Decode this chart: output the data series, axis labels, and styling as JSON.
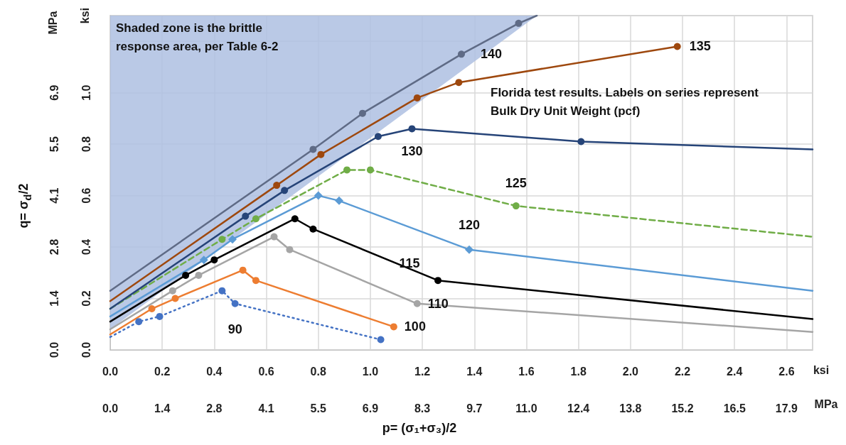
{
  "chart_data": {
    "type": "line",
    "xlabel": "ksi",
    "ylabel": "ksi",
    "x2label": "MPa",
    "y2label": "MPa",
    "annotations": [
      "p= (σ₁+σ₃)/2",
      "q= σ$_{d}$/2",
      "Shaded zone is the brittle response area, per Table 6-2",
      "Florida test results. Labels on series represent Bulk Dry Unit Weight (pcf)"
    ],
    "xlim": [
      0,
      2.7
    ],
    "ylim": [
      0,
      1.3
    ],
    "xticks": [
      {
        "value": 0,
        "label": "0.0"
      },
      {
        "value": 0.2,
        "label": "0.2"
      },
      {
        "value": 0.4,
        "label": "0.4"
      },
      {
        "value": 0.6,
        "label": "0.6"
      },
      {
        "value": 0.8,
        "label": "0.8"
      },
      {
        "value": 1.0,
        "label": "1.0"
      },
      {
        "value": 1.2,
        "label": "1.2"
      },
      {
        "value": 1.4,
        "label": "1.4"
      },
      {
        "value": 1.6,
        "label": "1.6"
      },
      {
        "value": 1.8,
        "label": "1.8"
      },
      {
        "value": 2.0,
        "label": "2.0"
      },
      {
        "value": 2.2,
        "label": "2.2"
      },
      {
        "value": 2.4,
        "label": "2.4"
      },
      {
        "value": 2.6,
        "label": "2.6"
      }
    ],
    "yticks": [
      {
        "value": 0,
        "label": "0.0"
      },
      {
        "value": 0.2,
        "label": "0.2"
      },
      {
        "value": 0.4,
        "label": "0.4"
      },
      {
        "value": 0.6,
        "label": "0.6"
      },
      {
        "value": 0.8,
        "label": "0.8"
      },
      {
        "value": 1.0,
        "label": "1.0"
      },
      {
        "value": 1.2,
        "label": null
      }
    ],
    "x2lim": [
      0,
      18.617
    ],
    "x2ticks": [
      {
        "value": 0,
        "label": "0.0"
      },
      {
        "value": 1.379,
        "label": "1.4"
      },
      {
        "value": 2.758,
        "label": "2.8"
      },
      {
        "value": 4.137,
        "label": "4.1"
      },
      {
        "value": 5.516,
        "label": "5.5"
      },
      {
        "value": 6.895,
        "label": "6.9"
      },
      {
        "value": 8.274,
        "label": "8.3"
      },
      {
        "value": 9.653,
        "label": "9.7"
      },
      {
        "value": 11.032,
        "label": "11.0"
      },
      {
        "value": 12.411,
        "label": "12.4"
      },
      {
        "value": 13.79,
        "label": "13.8"
      },
      {
        "value": 15.169,
        "label": "15.2"
      },
      {
        "value": 16.548,
        "label": "16.5"
      },
      {
        "value": 17.927,
        "label": "17.9"
      }
    ],
    "y2lim": [
      0,
      8.964
    ],
    "y2ticks": [
      {
        "value": 0,
        "label": "0.0"
      },
      {
        "value": 1.379,
        "label": "1.4"
      },
      {
        "value": 2.758,
        "label": "2.8"
      },
      {
        "value": 4.137,
        "label": "4.1"
      },
      {
        "value": 5.516,
        "label": "5.5"
      },
      {
        "value": 6.895,
        "label": "6.9"
      },
      {
        "value": 8.274,
        "label": null
      }
    ],
    "grid": true,
    "legend": false,
    "series": [
      {
        "type": "area",
        "color": "#aebfe2",
        "x": [
          0,
          1.64
        ],
        "values": [
          0.08,
          1.3
        ]
      },
      {
        "name": "90",
        "color": "#4472c4",
        "marker": "circle",
        "line_style": "dotted",
        "x": [
          0,
          0.11,
          0.19,
          0.43,
          0.48,
          1.04
        ],
        "values": [
          0.05,
          0.11,
          0.13,
          0.23,
          0.18,
          0.04
        ]
      },
      {
        "name": "100",
        "color": "#ed7d31",
        "marker": "circle",
        "line_style": "solid",
        "x": [
          0,
          0.16,
          0.25,
          0.51,
          0.56,
          1.09
        ],
        "values": [
          0.06,
          0.16,
          0.2,
          0.31,
          0.27,
          0.09
        ]
      },
      {
        "name": "110",
        "color": "#a5a5a5",
        "marker": "circle",
        "line_style": "solid",
        "x": [
          0,
          0.24,
          0.34,
          0.63,
          0.69,
          1.18,
          2.7
        ],
        "values": [
          0.08,
          0.23,
          0.29,
          0.44,
          0.39,
          0.18,
          0.07
        ]
      },
      {
        "name": "115",
        "color": "#000000",
        "marker": "circle",
        "line_style": "solid",
        "x": [
          0,
          0.29,
          0.4,
          0.71,
          0.78,
          1.26,
          2.7
        ],
        "values": [
          0.11,
          0.29,
          0.35,
          0.51,
          0.47,
          0.27,
          0.12
        ]
      },
      {
        "name": "120",
        "color": "#5b9bd5",
        "marker": "diamond",
        "line_style": "solid",
        "x": [
          0,
          0.36,
          0.47,
          0.8,
          0.88,
          1.38,
          2.7
        ],
        "values": [
          0.13,
          0.35,
          0.43,
          0.6,
          0.58,
          0.39,
          0.23
        ]
      },
      {
        "name": "125",
        "color": "#70ad47",
        "marker": "circle",
        "line_style": "dashed",
        "x": [
          0,
          0.43,
          0.56,
          0.91,
          1.0,
          1.56,
          2.7
        ],
        "values": [
          0.16,
          0.43,
          0.51,
          0.7,
          0.7,
          0.56,
          0.44
        ]
      },
      {
        "name": "130",
        "color": "#264478",
        "marker": "circle",
        "line_style": "solid",
        "x": [
          0,
          0.52,
          0.67,
          1.03,
          1.16,
          1.81,
          2.7
        ],
        "values": [
          0.16,
          0.52,
          0.62,
          0.83,
          0.86,
          0.81,
          0.78
        ]
      },
      {
        "name": "135",
        "color": "#9e480e",
        "marker": "circle",
        "line_style": "solid",
        "x": [
          0,
          0.64,
          0.81,
          1.18,
          1.34,
          2.18
        ],
        "values": [
          0.19,
          0.64,
          0.76,
          0.98,
          1.04,
          1.18
        ]
      },
      {
        "name": "140",
        "color": "#5f6b86",
        "marker": "circle",
        "line_style": "solid",
        "x": [
          0,
          0.78,
          0.97,
          1.35,
          1.57,
          1.64
        ],
        "values": [
          0.23,
          0.78,
          0.92,
          1.15,
          1.27,
          1.3
        ]
      }
    ]
  }
}
